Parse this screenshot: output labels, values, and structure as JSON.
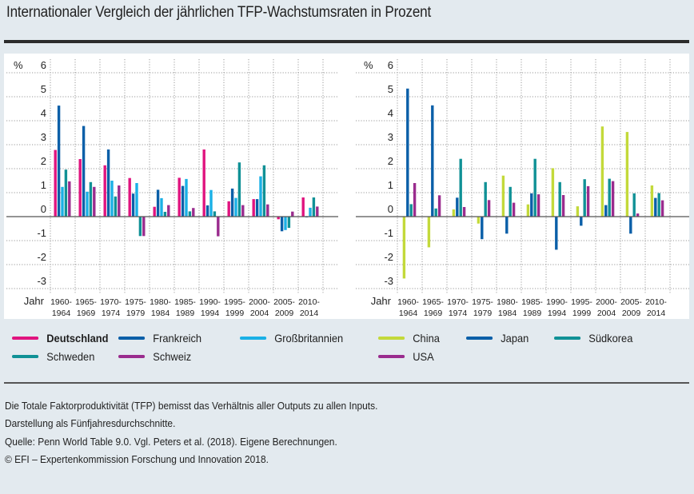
{
  "title": "Internationaler Vergleich der jährlichen TFP-Wachstumsraten in Prozent",
  "chart_data": [
    {
      "type": "bar",
      "title": "",
      "xlabel": "Jahr",
      "ylabel": "%",
      "ylim": [
        -3,
        6
      ],
      "yticks": [
        "6",
        "5",
        "4",
        "3",
        "2",
        "1",
        "0",
        "-1",
        "-2",
        "-3"
      ],
      "grid": true,
      "legend_position": "bottom",
      "categories": [
        [
          "1960-",
          "1964"
        ],
        [
          "1965-",
          "1969"
        ],
        [
          "1970-",
          "1974"
        ],
        [
          "1975-",
          "1979"
        ],
        [
          "1980-",
          "1984"
        ],
        [
          "1985-",
          "1989"
        ],
        [
          "1990-",
          "1994"
        ],
        [
          "1995-",
          "1999"
        ],
        [
          "2000-",
          "2004"
        ],
        [
          "2005-",
          "2009"
        ],
        [
          "2010-",
          "2014"
        ]
      ],
      "series": [
        {
          "name": "Deutschland",
          "color": "#e0147f",
          "bold": true,
          "values": [
            2.78,
            2.4,
            2.14,
            1.61,
            0.41,
            1.62,
            2.8,
            0.64,
            0.73,
            -0.11,
            0.8
          ]
        },
        {
          "name": "Frankreich",
          "color": "#0a5fa8",
          "bold": false,
          "values": [
            4.63,
            3.78,
            2.8,
            0.96,
            1.12,
            1.28,
            0.47,
            1.17,
            0.73,
            -0.61,
            -0.03
          ]
        },
        {
          "name": "Großbritannien",
          "color": "#1ab0e6",
          "bold": false,
          "values": [
            1.24,
            1.04,
            1.5,
            1.4,
            0.77,
            1.57,
            1.11,
            0.78,
            1.68,
            -0.56,
            0.37
          ]
        },
        {
          "name": "Schweden",
          "color": "#109196",
          "bold": false,
          "values": [
            1.96,
            1.44,
            0.84,
            -0.81,
            0.2,
            0.22,
            0.22,
            2.26,
            2.14,
            -0.47,
            0.8
          ]
        },
        {
          "name": "Schweiz",
          "color": "#9a2c8e",
          "bold": false,
          "values": [
            1.47,
            1.24,
            1.3,
            -0.81,
            0.48,
            0.36,
            -0.82,
            0.48,
            0.51,
            0.21,
            0.42
          ]
        }
      ]
    },
    {
      "type": "bar",
      "title": "",
      "xlabel": "Jahr",
      "ylabel": "%",
      "ylim": [
        -3,
        6
      ],
      "yticks": [
        "6",
        "5",
        "4",
        "3",
        "2",
        "1",
        "0",
        "-1",
        "-2",
        "-3"
      ],
      "grid": true,
      "legend_position": "bottom",
      "categories": [
        [
          "1960-",
          "1964"
        ],
        [
          "1965-",
          "1969"
        ],
        [
          "1970-",
          "1974"
        ],
        [
          "1975-",
          "1979"
        ],
        [
          "1980-",
          "1984"
        ],
        [
          "1985-",
          "1989"
        ],
        [
          "1990-",
          "1994"
        ],
        [
          "1995-",
          "1999"
        ],
        [
          "2000-",
          "2004"
        ],
        [
          "2005-",
          "2009"
        ],
        [
          "2010-",
          "2014"
        ]
      ],
      "series": [
        {
          "name": "China",
          "color": "#c3d93a",
          "bold": false,
          "values": [
            -2.58,
            -1.28,
            0.3,
            -0.29,
            1.71,
            0.51,
            2.02,
            0.43,
            3.76,
            3.53,
            1.3
          ]
        },
        {
          "name": "Japan",
          "color": "#0a5fa8",
          "bold": false,
          "values": [
            5.34,
            4.64,
            0.79,
            -0.94,
            -0.71,
            0.97,
            -1.38,
            -0.38,
            0.48,
            -0.71,
            0.78
          ]
        },
        {
          "name": "Südkorea",
          "color": "#109196",
          "bold": false,
          "values": [
            0.52,
            0.34,
            2.41,
            1.44,
            1.24,
            2.41,
            1.44,
            1.56,
            1.58,
            0.97,
            0.98
          ]
        },
        {
          "name": "USA",
          "color": "#9a2c8e",
          "bold": false,
          "values": [
            1.4,
            0.89,
            0.4,
            0.69,
            0.58,
            0.93,
            0.9,
            1.27,
            1.48,
            0.13,
            0.68
          ]
        }
      ]
    }
  ],
  "notes": [
    "Die Totale Faktorproduktivität (TFP) bemisst das Verhältnis aller Outputs zu allen Inputs.",
    "Darstellung als Fünfjahresdurchschnitte.",
    "Quelle: Penn World Table 9.0. Vgl. Peters et al. (2018). Eigene Berechnungen.",
    "© EFI – Expertenkommission Forschung und Innovation 2018."
  ]
}
